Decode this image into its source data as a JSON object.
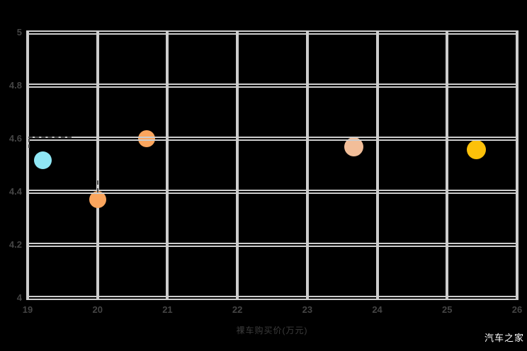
{
  "watermark": {
    "text": "汽车之家",
    "color": "#ffffff"
  },
  "chart_data": {
    "type": "scatter",
    "title": "",
    "xlabel": "裸车购买价(万元)",
    "ylabel": "",
    "xlim": [
      19,
      26
    ],
    "ylim": [
      4,
      5
    ],
    "x_ticks": [
      "19",
      "20",
      "21",
      "22",
      "23",
      "24",
      "25",
      "26"
    ],
    "x_tick_values": [
      19,
      20,
      21,
      22,
      23,
      24,
      25,
      26
    ],
    "y_ticks": [
      "5",
      "4.8",
      "4.6",
      "4.4",
      "4.2",
      "4"
    ],
    "y_tick_values": [
      5,
      4.8,
      4.6,
      4.4,
      4.2,
      4
    ],
    "grid": "on",
    "legend": "none",
    "background_color": "#000000",
    "grid_color": "#cdcdcd",
    "tick_label_color": "#454545",
    "axis_title_color": "#3c3c3c",
    "annotation_color": "#4a4a4a",
    "points": [
      {
        "x": 19.22,
        "y": 4.52,
        "color": "#8FE7F5",
        "diameter": 25
      },
      {
        "x": 20.0,
        "y": 4.37,
        "color": "#FBA55D",
        "diameter": 24
      },
      {
        "x": 20.7,
        "y": 4.6,
        "color": "#FBA55D",
        "diameter": 24
      },
      {
        "x": 23.66,
        "y": 4.57,
        "color": "#F2BE99",
        "diameter": 27
      },
      {
        "x": 25.42,
        "y": 4.56,
        "color": "#FDC10A",
        "diameter": 27
      }
    ],
    "annotations": [
      {
        "kind": "dash-h",
        "x1": 19.01,
        "x2": 19.63,
        "y": 4.606
      },
      {
        "kind": "dash-v",
        "x": 19.02,
        "y1": 4.6,
        "y2": 4.565
      },
      {
        "kind": "dash-v",
        "x": 20.0,
        "y1": 4.443,
        "y2": 4.397
      }
    ]
  }
}
